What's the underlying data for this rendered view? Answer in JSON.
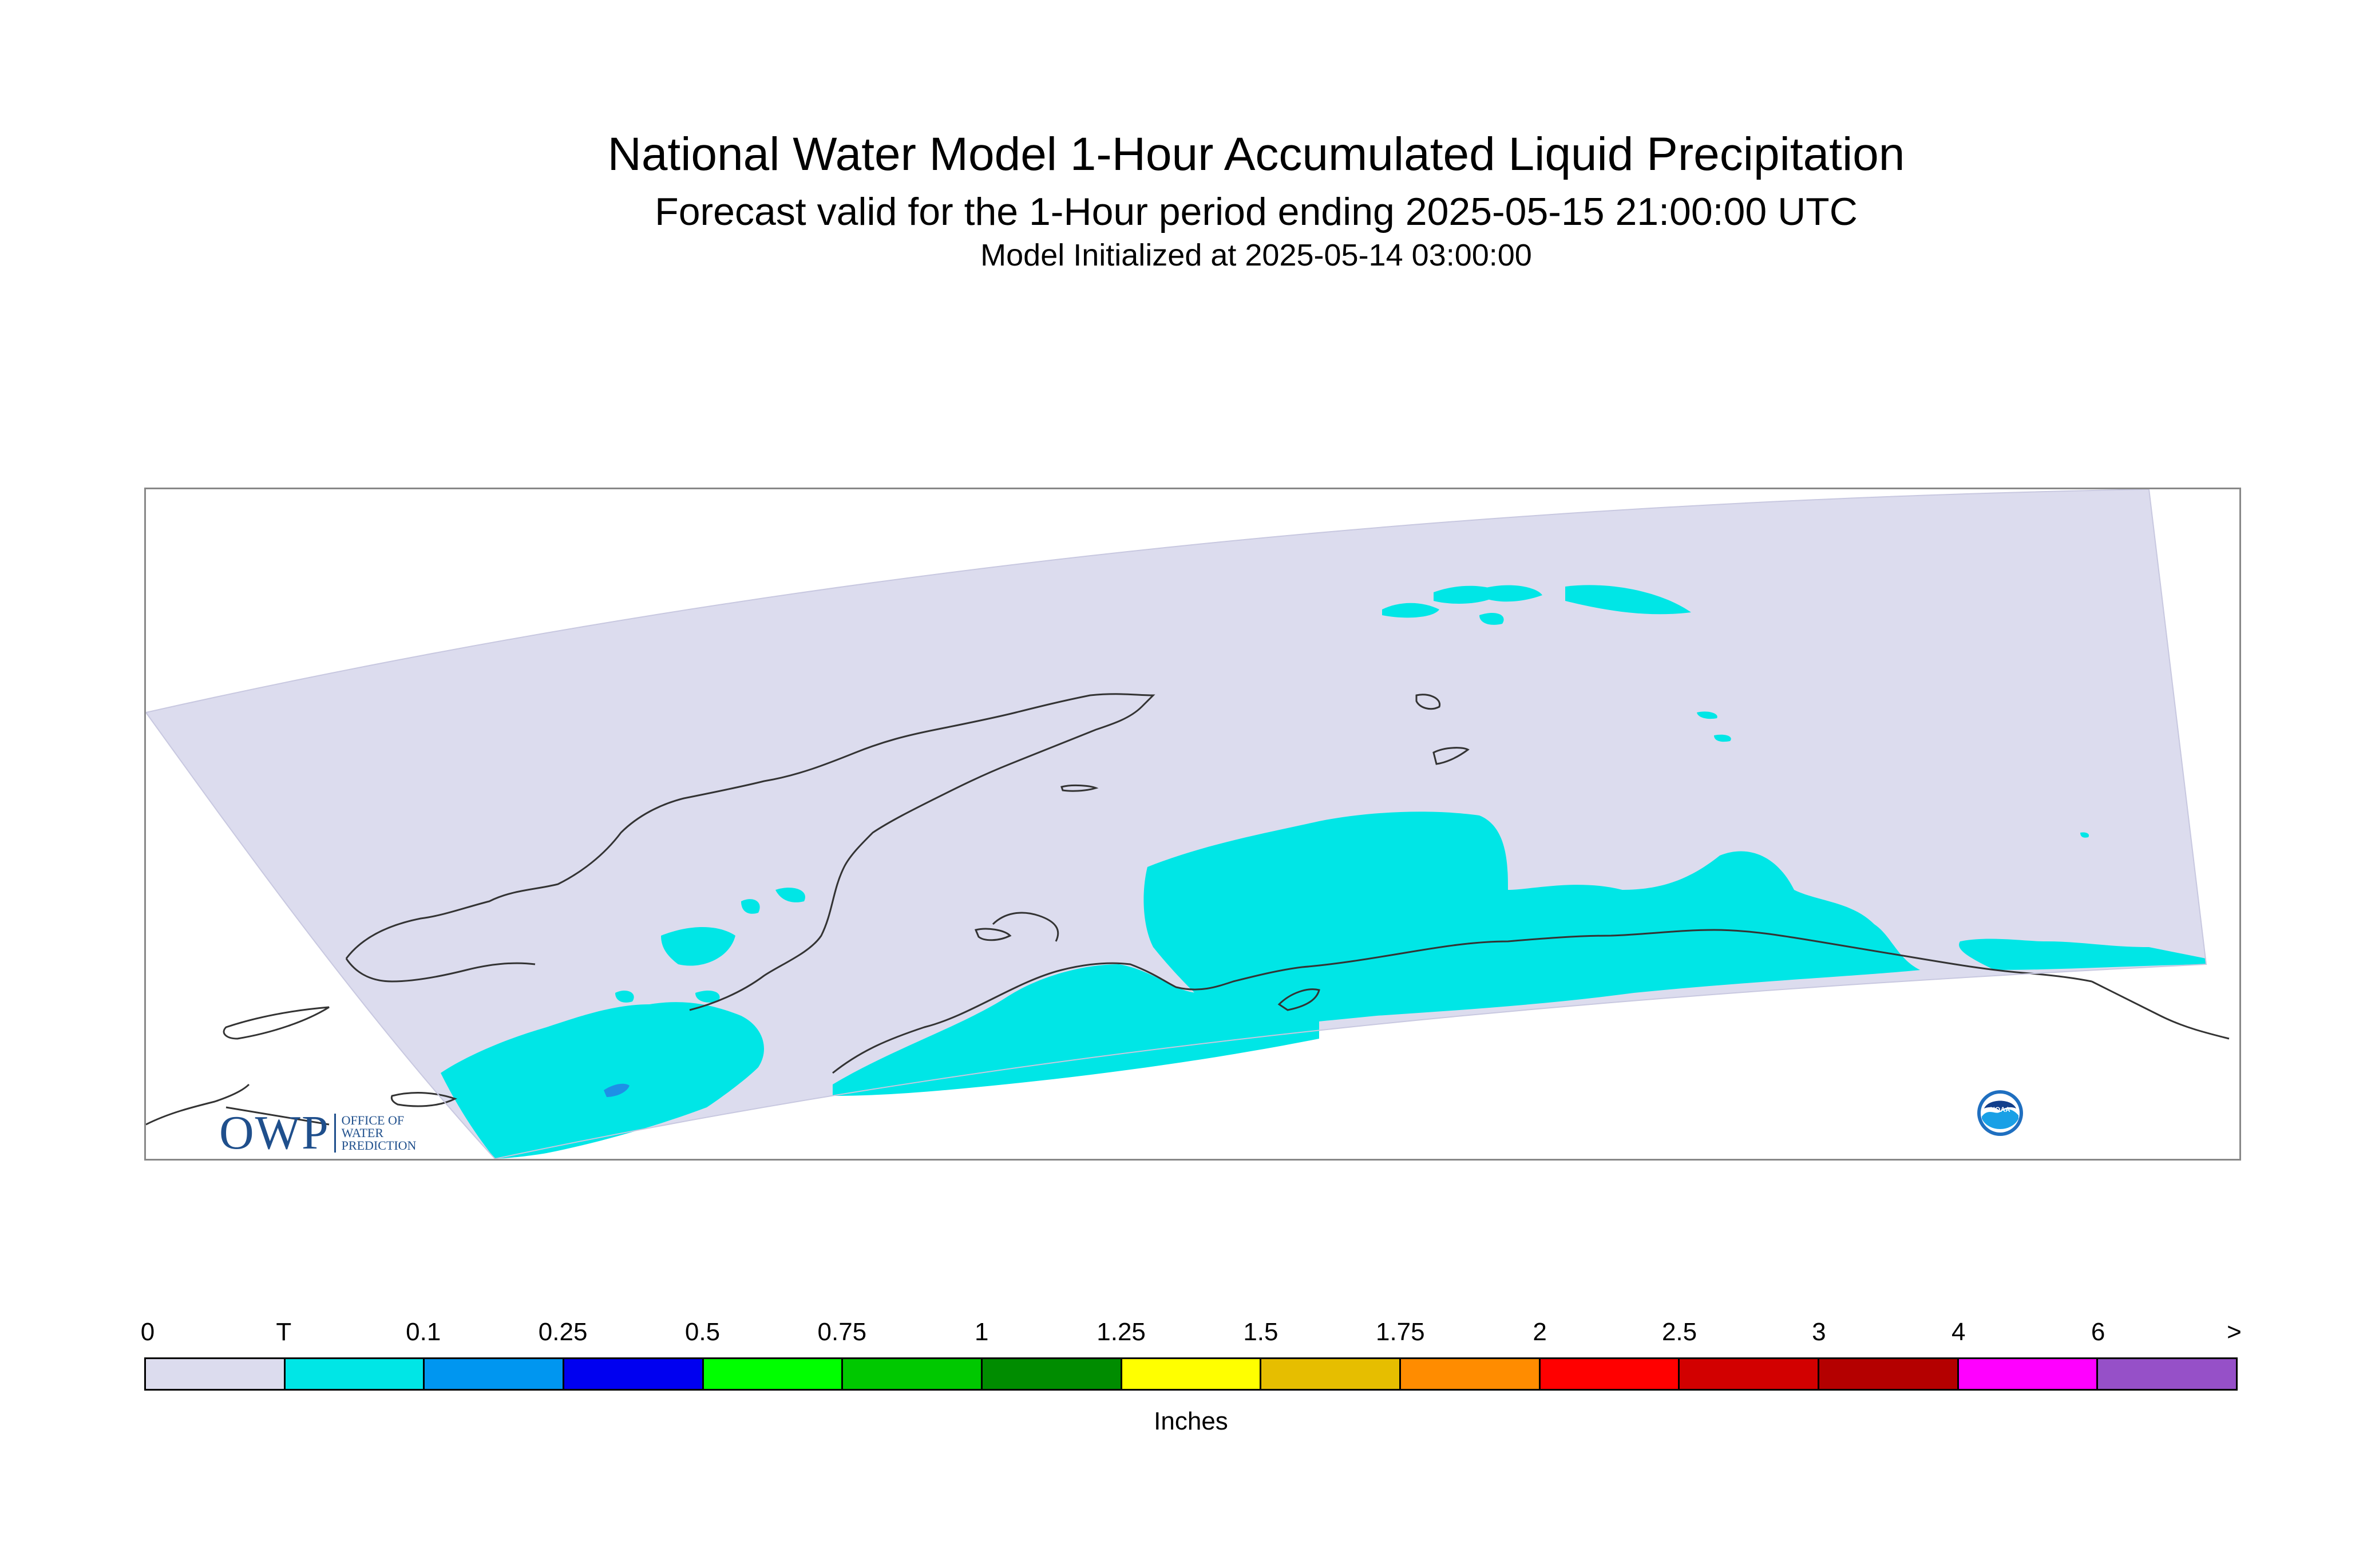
{
  "header": {
    "title": "National Water Model 1-Hour Accumulated Liquid Precipitation",
    "subtitle": "Forecast valid for the 1-Hour period ending 2025-05-15 21:00:00 UTC",
    "init_line": "Model Initialized at 2025-05-14 03:00:00"
  },
  "map": {
    "region": "Alaska",
    "domain_fill_color": "#dcdcee",
    "precip_fill_color": "#00e6e6",
    "heavy_precip_color": "#1e90e6",
    "coastline_color": "#333333"
  },
  "logos": {
    "owp": {
      "big_text": "OWP",
      "small_lines": [
        "OFFICE OF",
        "WATER",
        "PREDICTION"
      ],
      "icon": "owp-logo"
    },
    "noaa": {
      "text": "NOAA",
      "icon": "noaa-logo"
    }
  },
  "legend": {
    "labels": [
      "0",
      "T",
      "0.1",
      "0.25",
      "0.5",
      "0.75",
      "1",
      "1.25",
      "1.5",
      "1.75",
      "2",
      "2.5",
      "3",
      "4",
      "6",
      ">"
    ],
    "colors": [
      "#dcdcee",
      "#00e6e6",
      "#0096f0",
      "#0000f0",
      "#00ff00",
      "#00c800",
      "#008c00",
      "#ffff00",
      "#e6be00",
      "#ff8c00",
      "#ff0000",
      "#d20000",
      "#b40000",
      "#ff00ff",
      "#9650c8"
    ],
    "unit": "Inches"
  }
}
